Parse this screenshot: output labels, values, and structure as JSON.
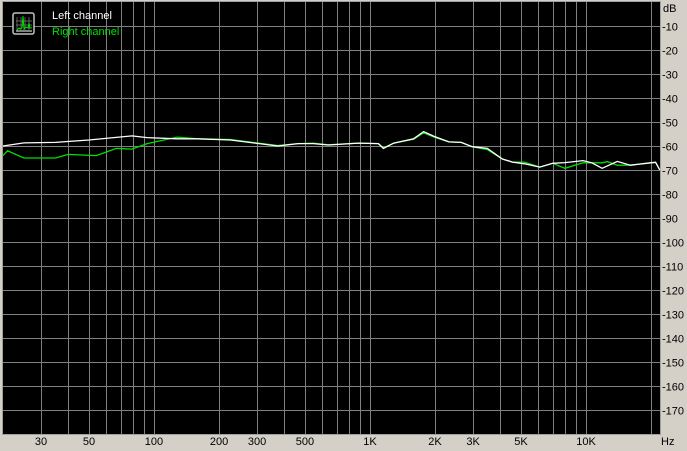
{
  "chart_data": {
    "type": "line",
    "title": "",
    "xlabel": "",
    "ylabel": "",
    "x_unit_label": "Hz",
    "y_unit_label": "dB",
    "x_scale": "log",
    "xlim": [
      20,
      22000
    ],
    "ylim": [
      -180,
      0
    ],
    "grid": true,
    "legend_placement": "top-left",
    "background_color": "#000000",
    "grid_color": "#808080",
    "x_tick_values": [
      30,
      50,
      100,
      200,
      300,
      500,
      1000,
      2000,
      3000,
      5000,
      10000
    ],
    "x_tick_labels": [
      "30",
      "50",
      "100",
      "200",
      "300",
      "500",
      "1K",
      "2K",
      "3K",
      "5K",
      "10K"
    ],
    "y_tick_values": [
      -10,
      -20,
      -30,
      -40,
      -50,
      -60,
      -70,
      -80,
      -90,
      -100,
      -110,
      -120,
      -130,
      -140,
      -150,
      -160,
      -170
    ],
    "y_tick_labels": [
      "-10",
      "-20",
      "-30",
      "-40",
      "-50",
      "-60",
      "-70",
      "-80",
      "-90",
      "-100",
      "-110",
      "-120",
      "-130",
      "-140",
      "-150",
      "-160",
      "-170"
    ],
    "series": [
      {
        "name": "Left channel",
        "color": "#ffffff",
        "points": [
          [
            20,
            -60
          ],
          [
            25,
            -58.7
          ],
          [
            35,
            -58.5
          ],
          [
            50,
            -57.5
          ],
          [
            79,
            -55.8
          ],
          [
            93,
            -56.5
          ],
          [
            128,
            -57
          ],
          [
            159,
            -57
          ],
          [
            226,
            -57.5
          ],
          [
            374,
            -60
          ],
          [
            465,
            -59
          ],
          [
            546,
            -59
          ],
          [
            641,
            -59.6
          ],
          [
            885,
            -58.8
          ],
          [
            1093,
            -59
          ],
          [
            1154,
            -61
          ],
          [
            1288,
            -58.8
          ],
          [
            1592,
            -57
          ],
          [
            1770,
            -54
          ],
          [
            1980,
            -56
          ],
          [
            2318,
            -58.3
          ],
          [
            2642,
            -58.5
          ],
          [
            2973,
            -60.3
          ],
          [
            3492,
            -61
          ],
          [
            4101,
            -65.4
          ],
          [
            4565,
            -66.7
          ],
          [
            5192,
            -67.4
          ],
          [
            6107,
            -68.8
          ],
          [
            7011,
            -67.2
          ],
          [
            7984,
            -66.9
          ],
          [
            9682,
            -66.1
          ],
          [
            10651,
            -67
          ],
          [
            11866,
            -69.3
          ],
          [
            13950,
            -66.4
          ],
          [
            16050,
            -68
          ],
          [
            19930,
            -67
          ],
          [
            21000,
            -66.8
          ],
          [
            21950,
            -70
          ]
        ]
      },
      {
        "name": "Right channel",
        "color": "#00e000",
        "points": [
          [
            20,
            -64
          ],
          [
            21,
            -62
          ],
          [
            25,
            -65
          ],
          [
            35,
            -65
          ],
          [
            40,
            -63.5
          ],
          [
            54,
            -64
          ],
          [
            67,
            -61
          ],
          [
            79,
            -61.3
          ],
          [
            93,
            -59
          ],
          [
            128,
            -56.3
          ],
          [
            159,
            -57
          ],
          [
            226,
            -57.3
          ],
          [
            374,
            -59.8
          ],
          [
            465,
            -59
          ],
          [
            546,
            -58.8
          ],
          [
            641,
            -59.5
          ],
          [
            885,
            -58.8
          ],
          [
            1093,
            -59
          ],
          [
            1154,
            -60.8
          ],
          [
            1288,
            -58.8
          ],
          [
            1592,
            -57.2
          ],
          [
            1770,
            -54.5
          ],
          [
            1980,
            -56.3
          ],
          [
            2318,
            -58.3
          ],
          [
            2642,
            -58.5
          ],
          [
            2973,
            -60.3
          ],
          [
            3492,
            -61.5
          ],
          [
            4101,
            -65.4
          ],
          [
            4565,
            -66.7
          ],
          [
            5192,
            -66.7
          ],
          [
            6107,
            -68.8
          ],
          [
            7011,
            -67.2
          ],
          [
            7984,
            -69.3
          ],
          [
            9682,
            -67
          ],
          [
            10651,
            -67
          ],
          [
            11866,
            -67
          ],
          [
            12530,
            -66.5
          ],
          [
            13950,
            -68
          ],
          [
            16050,
            -68
          ],
          [
            19930,
            -67
          ],
          [
            21000,
            -66.8
          ],
          [
            21950,
            -70
          ]
        ]
      }
    ]
  }
}
